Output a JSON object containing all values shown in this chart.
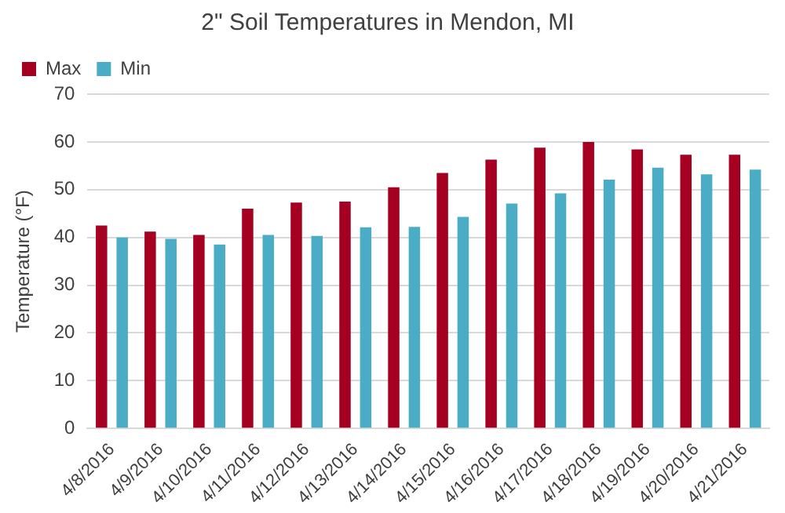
{
  "chart_data": {
    "type": "bar",
    "title": "2\" Soil Temperatures in Mendon, MI",
    "ylabel": "Temperature (°F)",
    "categories": [
      "4/8/2016",
      "4/9/2016",
      "4/10/2016",
      "4/11/2016",
      "4/12/2016",
      "4/13/2016",
      "4/14/2016",
      "4/15/2016",
      "4/16/2016",
      "4/17/2016",
      "4/18/2016",
      "4/19/2016",
      "4/20/2016",
      "4/21/2016"
    ],
    "series": [
      {
        "name": "Max",
        "color": "#a50021",
        "values": [
          42.5,
          41.2,
          40.5,
          46,
          47.3,
          47.5,
          50.5,
          53.5,
          56.3,
          58.8,
          60,
          58.4,
          57.3,
          57.3
        ]
      },
      {
        "name": "Min",
        "color": "#4bacc6",
        "values": [
          40,
          39.7,
          38.5,
          40.5,
          40.3,
          42.1,
          42.2,
          44.3,
          47.1,
          49.2,
          52.1,
          54.6,
          53.2,
          54.2
        ]
      }
    ],
    "ylim": [
      0,
      70
    ],
    "yticks": [
      0,
      10,
      20,
      30,
      40,
      50,
      60,
      70
    ],
    "grid": "y",
    "legend": "top left"
  }
}
